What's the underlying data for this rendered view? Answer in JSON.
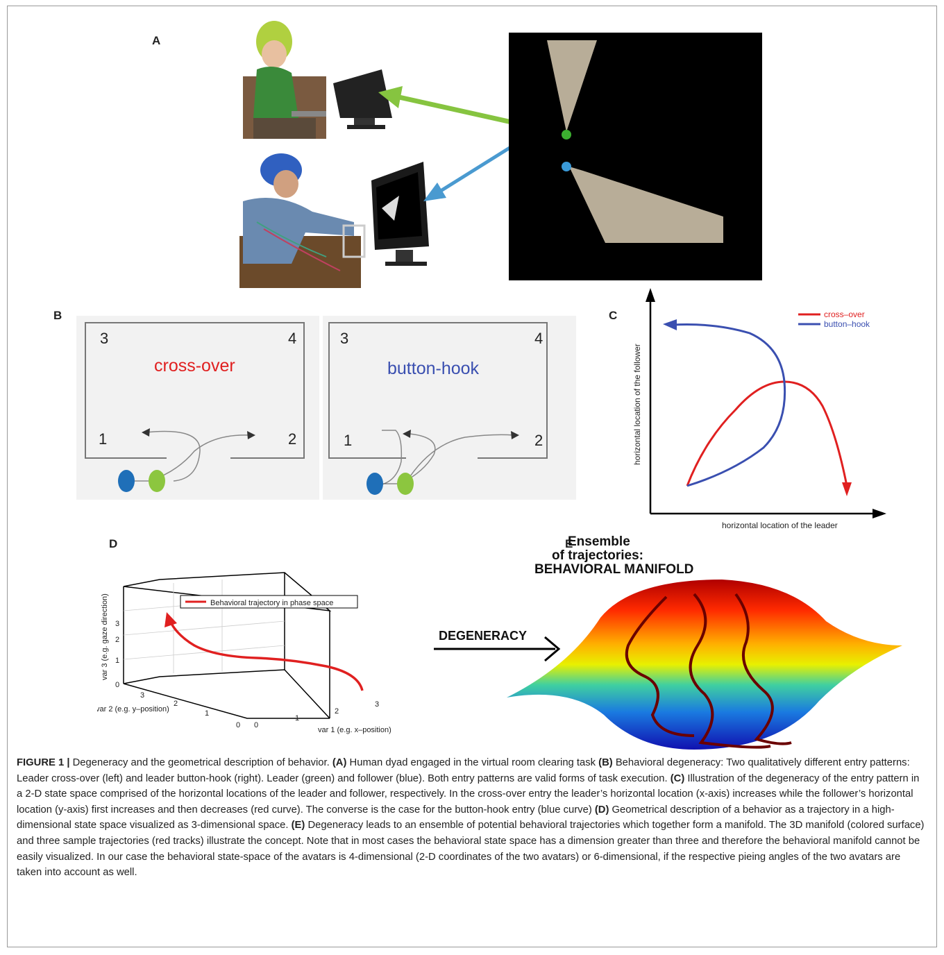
{
  "panels": {
    "A": {
      "label": "A"
    },
    "B": {
      "label": "B",
      "left_box": {
        "title": "cross-over",
        "corners": [
          "3",
          "4",
          "1",
          "2"
        ]
      },
      "right_box": {
        "title": "button-hook",
        "corners": [
          "3",
          "4",
          "1",
          "2"
        ]
      }
    },
    "C": {
      "label": "C",
      "xlabel": "horizontal location of the leader",
      "ylabel": "horizontal location of the follower",
      "legend": [
        {
          "name": "cross–over",
          "color": "#e02020"
        },
        {
          "name": "button–hook",
          "color": "#3a4fb0"
        }
      ]
    },
    "D": {
      "label": "D",
      "legend": "Behavioral trajectory in phase space",
      "zlabel": "var 3 (e.g. gaze direction)",
      "ylabel": "var 2 (e.g. y–position)",
      "xlabel": "var 1 (e.g. x–position)",
      "z_ticks": [
        "0",
        "1",
        "2",
        "3"
      ],
      "y_ticks": [
        "3",
        "2",
        "1",
        "0"
      ],
      "x_ticks": [
        "0",
        "1",
        "2",
        "3"
      ]
    },
    "E": {
      "label": "E",
      "title_line1": "Ensemble",
      "title_line2": "of trajectories:",
      "title_line3": "BEHAVIORAL MANIFOLD",
      "arrow_label": "DEGENERACY"
    }
  },
  "colors": {
    "leader": "#8cc63f",
    "follower": "#1f6fb8",
    "cross_over": "#e02020",
    "button_hook": "#3a4fb0"
  },
  "caption": {
    "lead": "FIGURE 1 |",
    "t0": " Degeneracy and the geometrical description of behavior. ",
    "a": "(A)",
    "t1": " Human dyad engaged in the virtual room clearing task ",
    "b": "(B)",
    "t2": " Behavioral degeneracy: Two qualitatively different entry patterns: Leader cross-over (left) and leader button-hook (right). Leader (green) and follower (blue). Both entry patterns are valid forms of task execution. ",
    "c": "(C)",
    "t3": " Illustration of the degeneracy of the entry pattern in a 2-D state space comprised of the horizontal locations of the leader and follower, respectively. In the cross-over entry the leader’s horizontal location (x-axis) increases while the follower’s horizontal location (y-axis) first increases and then decreases (red curve). The converse is the case for the button-hook entry (blue curve) ",
    "d": "(D)",
    "t4": " Geometrical description of a behavior as a trajectory in a high-dimensional state space visualized as 3-dimensional space. ",
    "e": "(E)",
    "t5": " Degeneracy leads to an ensemble of potential behavioral trajectories which together form a manifold. The 3D manifold (colored surface) and three sample trajectories (red tracks) illustrate the concept. Note that in most cases the behavioral state space has a dimension greater than three and therefore the behavioral manifold cannot be easily visualized. In our case the behavioral state-space of the avatars is 4-dimensional (2-D coordinates of the two avatars) or 6-dimensional, if the respective pieing angles of the two avatars are taken into account as well."
  }
}
